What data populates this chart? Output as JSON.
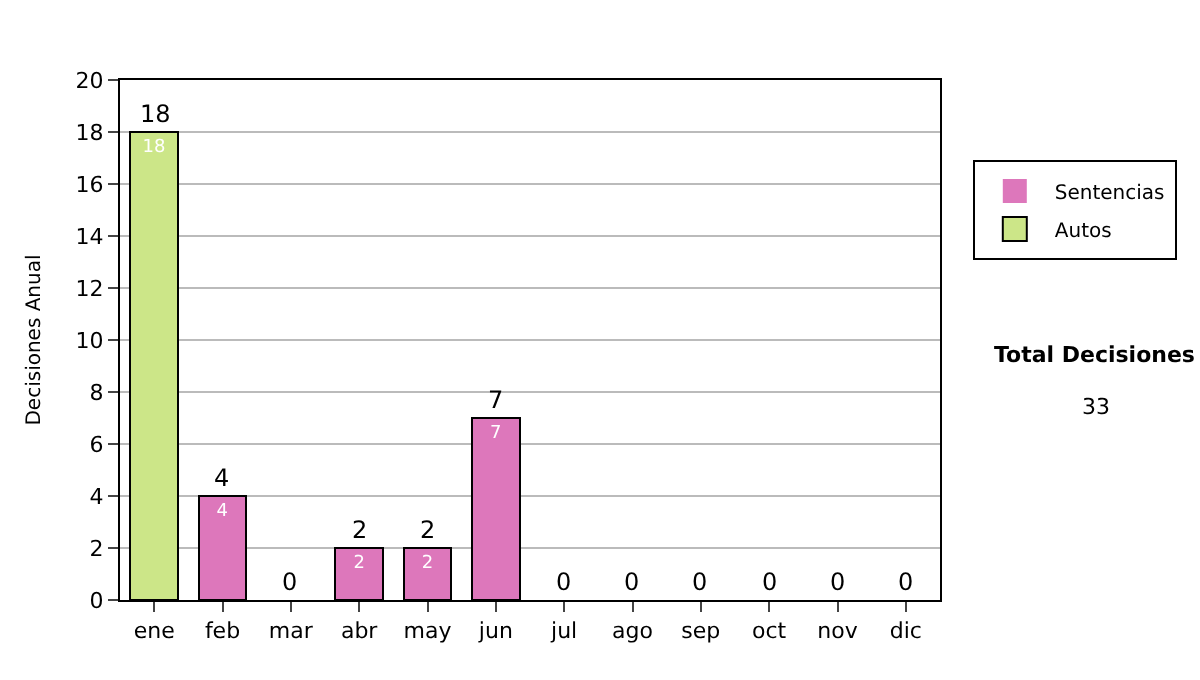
{
  "chart_data": {
    "type": "bar",
    "stacked": true,
    "ylabel": "Decisiones Anual",
    "categories": [
      "ene",
      "feb",
      "mar",
      "abr",
      "may",
      "jun",
      "jul",
      "ago",
      "sep",
      "oct",
      "nov",
      "dic"
    ],
    "series": [
      {
        "name": "Sentencias",
        "color": "#dd77bb",
        "values": [
          0,
          4,
          0,
          2,
          2,
          7,
          0,
          0,
          0,
          0,
          0,
          0
        ],
        "value_labels": [
          null,
          "4",
          null,
          "2",
          "2",
          "7",
          null,
          null,
          null,
          null,
          null,
          null
        ]
      },
      {
        "name": "Autos",
        "color": "#cce688",
        "values": [
          18,
          0,
          0,
          0,
          0,
          0,
          0,
          0,
          0,
          0,
          0,
          0
        ],
        "value_labels": [
          "18",
          null,
          null,
          null,
          null,
          null,
          null,
          null,
          null,
          null,
          null,
          null
        ]
      }
    ],
    "totals": [
      "18",
      "4",
      "0",
      "2",
      "2",
      "7",
      "0",
      "0",
      "0",
      "0",
      "0",
      "0"
    ],
    "ylim": [
      0,
      20
    ],
    "yticks": [
      0,
      2,
      4,
      6,
      8,
      10,
      12,
      14,
      16,
      18,
      20
    ],
    "grid": "y",
    "legend": "right",
    "annotations": [
      "Total Decisiones",
      "33"
    ]
  }
}
